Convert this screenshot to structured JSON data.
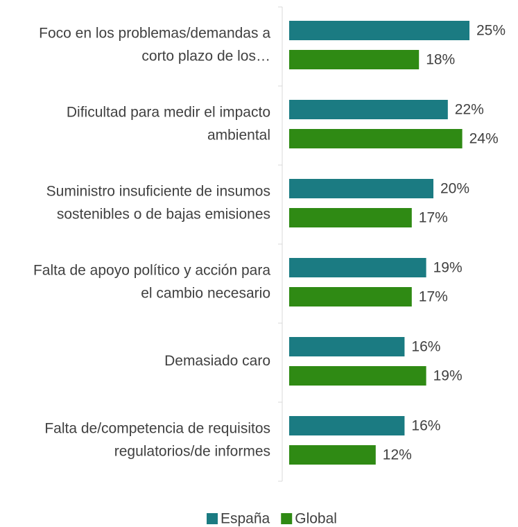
{
  "chart_data": {
    "type": "bar",
    "orientation": "horizontal",
    "categories": [
      "Foco en los problemas/demandas a corto plazo de los…",
      "Dificultad para medir el impacto ambiental",
      "Suministro insuficiente de insumos sostenibles o de bajas emisiones",
      "Falta de apoyo político y acción para el cambio necesario",
      "Demasiado caro",
      "Falta de/competencia de requisitos regulatorios/de informes"
    ],
    "series": [
      {
        "name": "España",
        "color": "#1b7b82",
        "values": [
          25,
          22,
          20,
          19,
          16,
          16
        ],
        "value_labels": [
          "25%",
          "22%",
          "20%",
          "19%",
          "16%",
          "16%"
        ]
      },
      {
        "name": "Global",
        "color": "#2f8a14",
        "values": [
          18,
          24,
          17,
          17,
          19,
          12
        ],
        "value_labels": [
          "18%",
          "24%",
          "17%",
          "17%",
          "19%",
          "12%"
        ]
      }
    ],
    "legend": "bottom"
  }
}
